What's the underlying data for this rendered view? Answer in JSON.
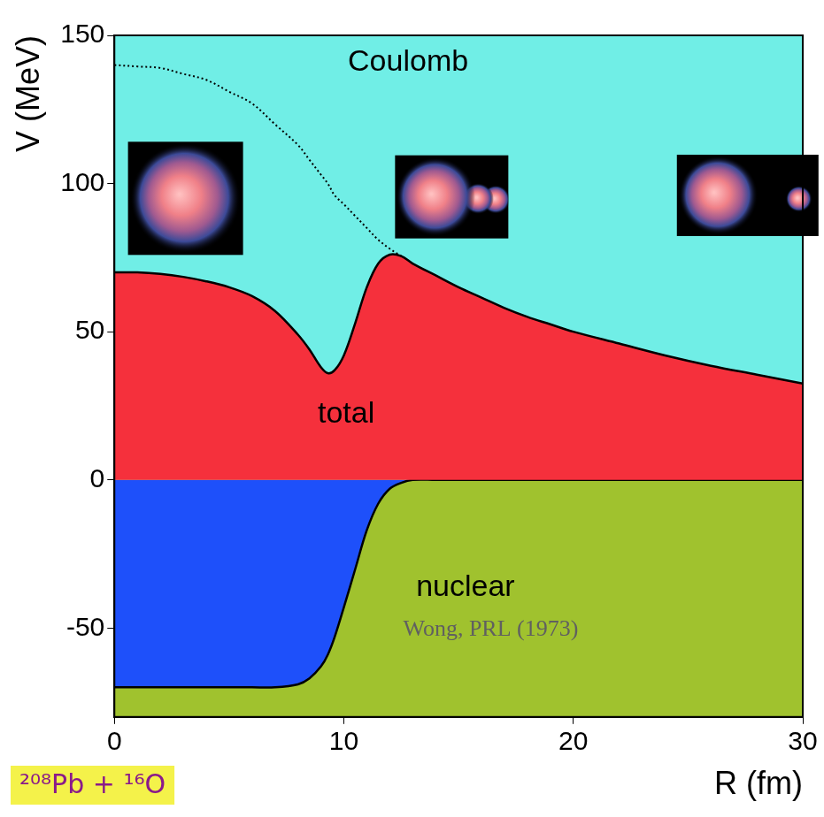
{
  "chart_data": {
    "type": "line",
    "x_label": "R (fm)",
    "y_label": "V (MeV)",
    "x": [
      0,
      1,
      2,
      3,
      4,
      5,
      6,
      7,
      8,
      8.5,
      9,
      9.3,
      9.6,
      10,
      10.5,
      11,
      11.5,
      12,
      12.5,
      13,
      14,
      15,
      16,
      17,
      18,
      19,
      20,
      22,
      24,
      26,
      28,
      30
    ],
    "series": [
      {
        "name": "Coulomb",
        "type": "line",
        "color": "#000000",
        "line_style": "dotted",
        "values": [
          140,
          139.5,
          139,
          137,
          135,
          131,
          127,
          120,
          113,
          108,
          103,
          100,
          96,
          93,
          89,
          85,
          81,
          78,
          75.5,
          null,
          null,
          null,
          null,
          null,
          null,
          null,
          null,
          null,
          null,
          null,
          null,
          null
        ]
      },
      {
        "name": "total",
        "type": "area",
        "color": "#f5303c",
        "line_style": "solid",
        "values": [
          70,
          70,
          69.5,
          68.5,
          67,
          65,
          62,
          57,
          49,
          44,
          38,
          36,
          37,
          42,
          53,
          65,
          73,
          76,
          75.5,
          73,
          69,
          65,
          61.5,
          58,
          55,
          52.5,
          50,
          46,
          42,
          38.5,
          35.5,
          32.5
        ]
      },
      {
        "name": "nuclear",
        "type": "area",
        "color": "#1e50fa",
        "line_style": "solid",
        "values": [
          -70,
          -70,
          -70,
          -70,
          -70,
          -70,
          -70,
          -70,
          -69,
          -67,
          -63,
          -59,
          -53,
          -43,
          -30,
          -17,
          -8,
          -3,
          -1,
          0,
          0,
          0,
          0,
          0,
          0,
          0,
          0,
          0,
          0,
          0,
          0,
          0
        ]
      }
    ],
    "annotations": [
      "Wong, PRL (1973)",
      "²⁰⁸Pb + ¹⁶O"
    ],
    "xlim": [
      0,
      30
    ],
    "xticks": [
      0,
      10,
      20,
      30
    ],
    "ylim": [
      -80,
      150
    ],
    "yticks": [
      -50,
      0,
      50,
      100,
      150
    ],
    "grid": false
  }
}
